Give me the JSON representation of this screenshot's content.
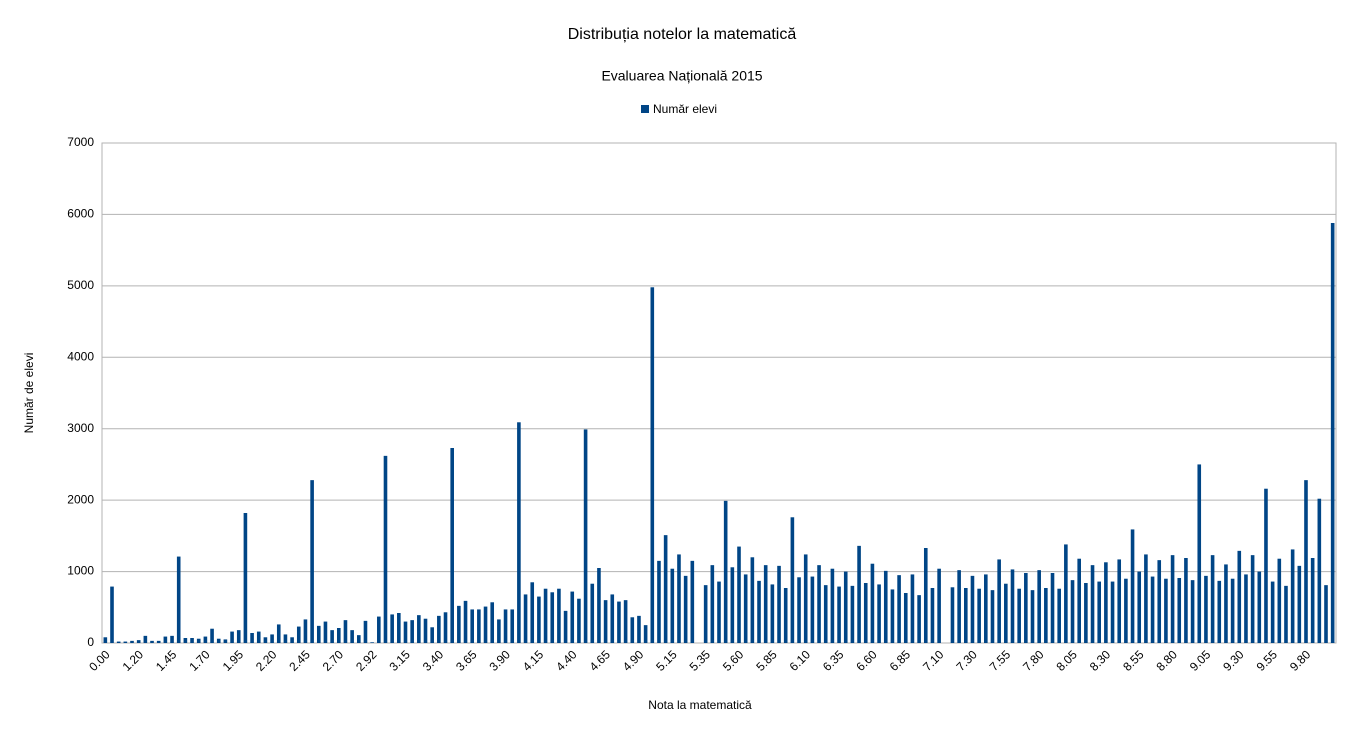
{
  "chart_data": {
    "type": "bar",
    "title": "Distribuția notelor  la matematică",
    "subtitle": "Evaluarea Națională 2015",
    "x_label": "Nota la matematică",
    "y_label": "Număr de elevi",
    "categories": [
      "0.00",
      null,
      null,
      null,
      null,
      "1.20",
      null,
      null,
      null,
      null,
      "1.45",
      null,
      null,
      null,
      null,
      "1.70",
      null,
      null,
      null,
      null,
      "1.95",
      null,
      null,
      null,
      null,
      "2.20",
      null,
      null,
      null,
      null,
      "2.45",
      null,
      null,
      null,
      null,
      "2.70",
      null,
      null,
      null,
      null,
      "2.92",
      null,
      null,
      null,
      null,
      "3.15",
      null,
      null,
      null,
      null,
      "3.40",
      null,
      null,
      null,
      null,
      "3.65",
      null,
      null,
      null,
      null,
      "3.90",
      null,
      null,
      null,
      null,
      "4.15",
      null,
      null,
      null,
      null,
      "4.40",
      null,
      null,
      null,
      null,
      "4.65",
      null,
      null,
      null,
      null,
      "4.90",
      null,
      null,
      null,
      null,
      "5.15",
      null,
      null,
      null,
      null,
      "5.35",
      null,
      null,
      null,
      null,
      "5.60",
      null,
      null,
      null,
      null,
      "5.85",
      null,
      null,
      null,
      null,
      "6.10",
      null,
      null,
      null,
      null,
      "6.35",
      null,
      null,
      null,
      null,
      "6.60",
      null,
      null,
      null,
      null,
      "6.85",
      null,
      null,
      null,
      null,
      "7.10",
      null,
      null,
      null,
      null,
      "7.30",
      null,
      null,
      null,
      null,
      "7.55",
      null,
      null,
      null,
      null,
      "7.80",
      null,
      null,
      null,
      null,
      "8.05",
      null,
      null,
      null,
      null,
      "8.30",
      null,
      null,
      null,
      null,
      "8.55",
      null,
      null,
      null,
      null,
      "8.80",
      null,
      null,
      null,
      null,
      "9.05",
      null,
      null,
      null,
      null,
      "9.30",
      null,
      null,
      null,
      null,
      "9.55",
      null,
      null,
      null,
      null,
      "9.80",
      null,
      null,
      null,
      null
    ],
    "series": [
      {
        "name": "Număr elevi",
        "color": "#004586",
        "values": [
          80,
          790,
          20,
          20,
          30,
          40,
          100,
          30,
          30,
          90,
          100,
          1210,
          70,
          70,
          60,
          90,
          200,
          60,
          50,
          160,
          180,
          1820,
          140,
          160,
          80,
          120,
          260,
          120,
          80,
          230,
          330,
          2280,
          240,
          300,
          180,
          210,
          320,
          180,
          110,
          310,
          10,
          370,
          2620,
          400,
          420,
          300,
          320,
          390,
          340,
          220,
          380,
          430,
          2730,
          520,
          590,
          470,
          470,
          510,
          570,
          330,
          470,
          470,
          3090,
          680,
          850,
          650,
          760,
          710,
          760,
          450,
          720,
          620,
          2990,
          830,
          1050,
          600,
          680,
          580,
          600,
          360,
          380,
          250,
          4980,
          1150,
          1510,
          1040,
          1240,
          940,
          1150,
          0,
          810,
          1090,
          860,
          1990,
          1060,
          1350,
          960,
          1200,
          870,
          1090,
          820,
          1080,
          770,
          1760,
          920,
          1240,
          930,
          1090,
          810,
          1040,
          790,
          1000,
          800,
          1360,
          840,
          1110,
          820,
          1010,
          750,
          950,
          700,
          960,
          670,
          1330,
          770,
          1040,
          0,
          780,
          1020,
          770,
          940,
          760,
          960,
          740,
          1170,
          830,
          1030,
          760,
          980,
          740,
          1020,
          770,
          980,
          760,
          1380,
          880,
          1180,
          840,
          1090,
          860,
          1130,
          860,
          1170,
          900,
          1590,
          1000,
          1240,
          930,
          1160,
          900,
          1230,
          910,
          1190,
          880,
          2500,
          940,
          1230,
          870,
          1100,
          900,
          1290,
          960,
          1230,
          1000,
          2160,
          860,
          1180,
          800,
          1310,
          1080,
          2280,
          1190,
          2020,
          810,
          5880
        ]
      }
    ],
    "ylim": [
      0,
      7000
    ],
    "yticks": [
      0,
      1000,
      2000,
      3000,
      4000,
      5000,
      6000,
      7000
    ],
    "grid": true,
    "legend": "top"
  }
}
